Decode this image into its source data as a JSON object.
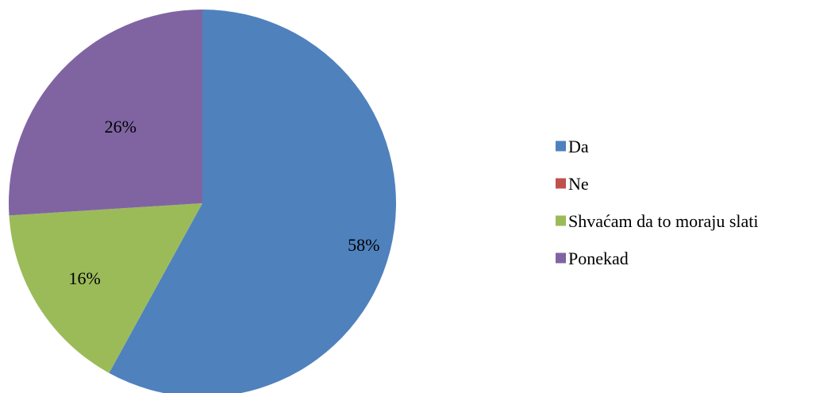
{
  "chart_data": {
    "type": "pie",
    "categories": [
      "Da",
      "Ne",
      "Shvaćam da to moraju slati",
      "Ponekad"
    ],
    "values": [
      58,
      0,
      16,
      26
    ],
    "data_labels": [
      "58%",
      "",
      "16%",
      "26%"
    ],
    "colors": [
      "#4F81BD",
      "#C0504D",
      "#9BBB59",
      "#8064A2"
    ],
    "legend_position": "right",
    "start_angle": "12 o'clock, clockwise"
  }
}
